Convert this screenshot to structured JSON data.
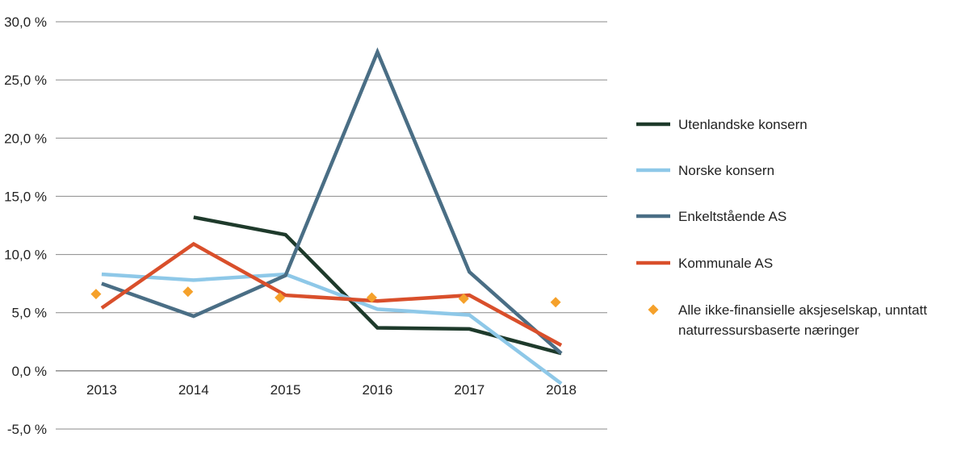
{
  "chart_data": {
    "type": "line",
    "categories": [
      "2013",
      "2014",
      "2015",
      "2016",
      "2017",
      "2018"
    ],
    "ylim": [
      -5,
      30
    ],
    "yticks": [
      30,
      25,
      20,
      15,
      10,
      5,
      0,
      -5
    ],
    "ytick_labels": [
      "30,0 %",
      "25,0 %",
      "20,0 %",
      "15,0 %",
      "10,0 %",
      "5,0 %",
      "0,0 %",
      "-5,0 %"
    ],
    "grid": true,
    "legend_position": "right",
    "series": [
      {
        "name": "Utenlandske konsern",
        "kind": "line",
        "color": "#1e3a2b",
        "values": [
          null,
          13.2,
          11.7,
          3.7,
          3.6,
          1.5
        ]
      },
      {
        "name": "Norske konsern",
        "kind": "line",
        "color": "#8ec8e8",
        "values": [
          8.3,
          7.8,
          8.3,
          5.3,
          4.8,
          -1.1
        ]
      },
      {
        "name": "Enkeltstående AS",
        "kind": "line",
        "color": "#4a6e85",
        "values": [
          7.5,
          4.7,
          8.2,
          27.4,
          8.5,
          1.5
        ]
      },
      {
        "name": "Kommunale AS",
        "kind": "line",
        "color": "#d94f2b",
        "values": [
          5.4,
          10.9,
          6.5,
          6.0,
          6.5,
          2.2
        ]
      },
      {
        "name": "Alle ikke-finansielle aksjeselskap, unntatt naturressursbaserte næringer",
        "label_lines": [
          "Alle ikke-finansielle aksjeselskap, unntatt",
          "naturressursbaserte næringer"
        ],
        "kind": "marker",
        "color": "#f5a12b",
        "values": [
          6.6,
          6.8,
          6.3,
          6.3,
          6.2,
          5.9
        ]
      }
    ]
  }
}
